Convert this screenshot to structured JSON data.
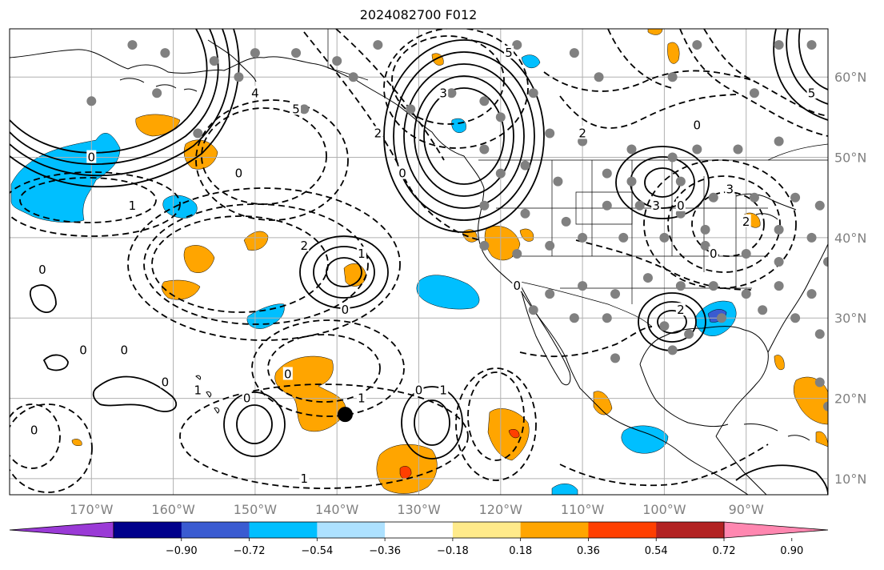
{
  "title": "2024082700 F012",
  "map": {
    "lon_range": [
      -180,
      -80
    ],
    "lat_range": [
      8,
      66
    ],
    "projection": "PlateCarree",
    "grid": true,
    "lat_ticks": [
      {
        "value": 60,
        "label": "60°N"
      },
      {
        "value": 50,
        "label": "50°N"
      },
      {
        "value": 40,
        "label": "40°N"
      },
      {
        "value": 30,
        "label": "30°N"
      },
      {
        "value": 20,
        "label": "20°N"
      },
      {
        "value": 10,
        "label": "10°N"
      }
    ],
    "lon_ticks": [
      {
        "value": -170,
        "label": "170°W"
      },
      {
        "value": -160,
        "label": "160°W"
      },
      {
        "value": -150,
        "label": "150°W"
      },
      {
        "value": -140,
        "label": "140°W"
      },
      {
        "value": -130,
        "label": "130°W"
      },
      {
        "value": -120,
        "label": "120°W"
      },
      {
        "value": -110,
        "label": "110°W"
      },
      {
        "value": -100,
        "label": "100°W"
      },
      {
        "value": -90,
        "label": "90°W"
      }
    ],
    "storm_marker": {
      "lon": -139,
      "lat": 18,
      "color": "#000000"
    },
    "station_color": "#808080",
    "stations": [
      [
        -165,
        64
      ],
      [
        -161,
        63
      ],
      [
        -155,
        62
      ],
      [
        -150,
        63
      ],
      [
        -145,
        63
      ],
      [
        -140,
        62
      ],
      [
        -135,
        64
      ],
      [
        -118,
        64
      ],
      [
        -111,
        63
      ],
      [
        -96,
        64
      ],
      [
        -86,
        64
      ],
      [
        -82,
        64
      ],
      [
        -170,
        57
      ],
      [
        -162,
        58
      ],
      [
        -152,
        60
      ],
      [
        -138,
        60
      ],
      [
        -131,
        56
      ],
      [
        -126,
        58
      ],
      [
        -122,
        57
      ],
      [
        -116,
        58
      ],
      [
        -108,
        60
      ],
      [
        -99,
        60
      ],
      [
        -89,
        58
      ],
      [
        -157,
        53
      ],
      [
        -144,
        56
      ],
      [
        -120,
        55
      ],
      [
        -114,
        53
      ],
      [
        -110,
        52
      ],
      [
        -104,
        51
      ],
      [
        -99,
        50
      ],
      [
        -96,
        51
      ],
      [
        -91,
        51
      ],
      [
        -86,
        52
      ],
      [
        -122,
        51
      ],
      [
        -120,
        48
      ],
      [
        -117,
        49
      ],
      [
        -113,
        47
      ],
      [
        -107,
        48
      ],
      [
        -104,
        47
      ],
      [
        -98,
        47
      ],
      [
        -94,
        45
      ],
      [
        -89,
        45
      ],
      [
        -84,
        45
      ],
      [
        -81,
        44
      ],
      [
        -122,
        44
      ],
      [
        -117,
        43
      ],
      [
        -112,
        42
      ],
      [
        -107,
        44
      ],
      [
        -103,
        44
      ],
      [
        -98,
        43
      ],
      [
        -95,
        41
      ],
      [
        -90,
        42
      ],
      [
        -86,
        41
      ],
      [
        -82,
        40
      ],
      [
        -122,
        39
      ],
      [
        -118,
        38
      ],
      [
        -114,
        39
      ],
      [
        -110,
        40
      ],
      [
        -105,
        40
      ],
      [
        -100,
        40
      ],
      [
        -95,
        39
      ],
      [
        -90,
        38
      ],
      [
        -86,
        37
      ],
      [
        -80,
        37
      ],
      [
        -118,
        34
      ],
      [
        -114,
        33
      ],
      [
        -110,
        34
      ],
      [
        -106,
        33
      ],
      [
        -102,
        35
      ],
      [
        -98,
        34
      ],
      [
        -94,
        34
      ],
      [
        -90,
        33
      ],
      [
        -86,
        34
      ],
      [
        -82,
        33
      ],
      [
        -116,
        31
      ],
      [
        -111,
        30
      ],
      [
        -107,
        30
      ],
      [
        -100,
        29
      ],
      [
        -97,
        28
      ],
      [
        -93,
        30
      ],
      [
        -88,
        31
      ],
      [
        -84,
        30
      ],
      [
        -81,
        28
      ],
      [
        -106,
        25
      ],
      [
        -99,
        26
      ],
      [
        -81,
        22
      ],
      [
        -80,
        19
      ]
    ]
  },
  "colorbar": {
    "ticks": [
      "−0.90",
      "−0.72",
      "−0.54",
      "−0.36",
      "−0.18",
      "0.18",
      "0.36",
      "0.54",
      "0.72",
      "0.90"
    ],
    "colors": [
      "#9a3ad6",
      "#00008b",
      "#3a5bd1",
      "#00bfff",
      "#ade1ff",
      "#ffffff",
      "#ffea8a",
      "#ffa500",
      "#ff3f00",
      "#b22222",
      "#ff87b0"
    ]
  },
  "contour_labels": [
    {
      "text": "0",
      "lon": -170,
      "lat": 50
    },
    {
      "text": "0",
      "lon": -152,
      "lat": 48
    },
    {
      "text": "4",
      "lon": -150,
      "lat": 58
    },
    {
      "text": "5",
      "lon": -145,
      "lat": 56
    },
    {
      "text": "2",
      "lon": -135,
      "lat": 53
    },
    {
      "text": "0",
      "lon": -132,
      "lat": 48
    },
    {
      "text": "1",
      "lon": -165,
      "lat": 44
    },
    {
      "text": "3",
      "lon": -127,
      "lat": 58
    },
    {
      "text": "3",
      "lon": -101,
      "lat": 44
    },
    {
      "text": "0",
      "lon": -98,
      "lat": 44
    },
    {
      "text": "3",
      "lon": -92,
      "lat": 46
    },
    {
      "text": "2",
      "lon": -90,
      "lat": 42
    },
    {
      "text": "2",
      "lon": -98,
      "lat": 31
    },
    {
      "text": "0",
      "lon": -94,
      "lat": 38
    },
    {
      "text": "2",
      "lon": -144,
      "lat": 39
    },
    {
      "text": "1",
      "lon": -137,
      "lat": 38
    },
    {
      "text": "0",
      "lon": -139,
      "lat": 31
    },
    {
      "text": "0",
      "lon": -118,
      "lat": 34
    },
    {
      "text": "0",
      "lon": -176,
      "lat": 36
    },
    {
      "text": "0",
      "lon": -171,
      "lat": 26
    },
    {
      "text": "0",
      "lon": -166,
      "lat": 26
    },
    {
      "text": "0",
      "lon": -161,
      "lat": 22
    },
    {
      "text": "1",
      "lon": -157,
      "lat": 21
    },
    {
      "text": "0",
      "lon": -151,
      "lat": 20
    },
    {
      "text": "0",
      "lon": -146,
      "lat": 23
    },
    {
      "text": "1",
      "lon": -137,
      "lat": 20
    },
    {
      "text": "0",
      "lon": -130,
      "lat": 21
    },
    {
      "text": "1",
      "lon": -127,
      "lat": 21
    },
    {
      "text": "1",
      "lon": -144,
      "lat": 10
    },
    {
      "text": "0",
      "lon": -177,
      "lat": 16
    },
    {
      "text": "5",
      "lon": -119,
      "lat": 63
    },
    {
      "text": "5",
      "lon": -82,
      "lat": 58
    },
    {
      "text": "2",
      "lon": -110,
      "lat": 53
    },
    {
      "text": "0",
      "lon": -96,
      "lat": 54
    }
  ]
}
